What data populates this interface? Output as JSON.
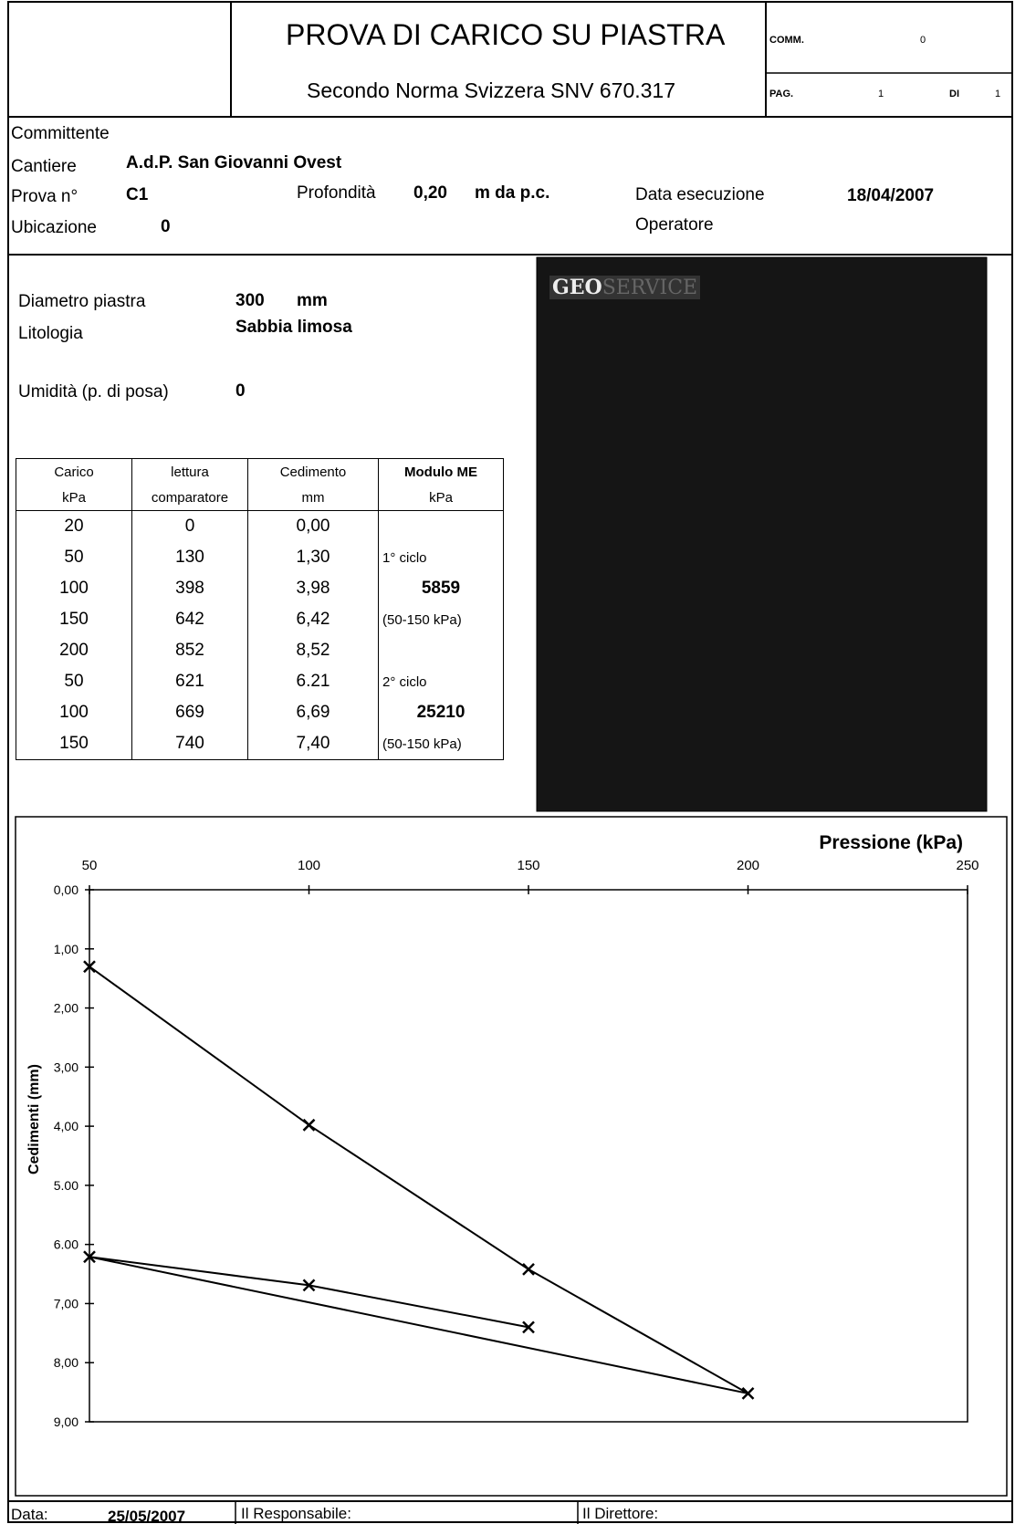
{
  "header": {
    "title": "PROVA DI CARICO SU PIASTRA",
    "subtitle": "Secondo Norma Svizzera SNV 670.317",
    "comm_label": "COMM.",
    "comm_value": "0",
    "pag_label": "PAG.",
    "pag_value": "1",
    "di_label": "DI",
    "di_value": "1"
  },
  "info": {
    "committente_label": "Committente",
    "cantiere_label": "Cantiere",
    "cantiere_value": "A.d.P. San Giovanni Ovest",
    "prova_label": "Prova n°",
    "prova_value": "C1",
    "profondita_label": "Profondità",
    "profondita_value": "0,20",
    "profondita_unit": "m da p.c.",
    "data_label": "Data esecuzione",
    "data_value": "18/04/2007",
    "ubicazione_label": "Ubicazione",
    "ubicazione_value": "0",
    "operatore_label": "Operatore"
  },
  "specs": {
    "diametro_label": "Diametro piastra",
    "diametro_value": "300",
    "diametro_unit": "mm",
    "litologia_label": "Litologia",
    "litologia_value": "Sabbia limosa",
    "umidita_label": "Umidità (p. di posa)",
    "umidita_value": "0"
  },
  "table": {
    "headers": [
      [
        "Carico",
        "kPa"
      ],
      [
        "lettura",
        "comparatore"
      ],
      [
        "Cedimento",
        "mm"
      ],
      [
        "Modulo ME",
        "kPa"
      ]
    ],
    "rows": [
      [
        "20",
        "0",
        "0,00",
        null
      ],
      [
        "50",
        "130",
        "1,30",
        "1° ciclo"
      ],
      [
        "100",
        "398",
        "3,98",
        "5859"
      ],
      [
        "150",
        "642",
        "6,42",
        "(50-150 kPa)"
      ],
      [
        "200",
        "852",
        "8,52",
        null
      ],
      [
        "50",
        "621",
        "6.21",
        "2° ciclo"
      ],
      [
        "100",
        "669",
        "6,69",
        "25210"
      ],
      [
        "150",
        "740",
        "7,40",
        "(50-150 kPa)"
      ]
    ]
  },
  "photo": {
    "logo_a": "GEO",
    "logo_b": "SERVICE"
  },
  "chart_data": {
    "type": "line",
    "x_label": "Pressione (kPa)",
    "y_label": "Cedimenti (mm)",
    "x": [
      50,
      100,
      150,
      200,
      50,
      100,
      150
    ],
    "values": [
      1.3,
      3.98,
      6.42,
      8.52,
      6.21,
      6.69,
      7.4
    ],
    "color": "#000000",
    "xlim": [
      50,
      250
    ],
    "ylim": [
      0,
      9
    ],
    "y_inverted": true,
    "x_axis_position": "top",
    "xticks": [
      50,
      100,
      150,
      200,
      250
    ],
    "yticks": [
      {
        "value": 0,
        "label": "0,00"
      },
      {
        "value": 1,
        "label": "1,00"
      },
      {
        "value": 2,
        "label": "2,00"
      },
      {
        "value": 3,
        "label": "3,00"
      },
      {
        "value": 4,
        "label": "4,00"
      },
      {
        "value": 5,
        "label": "5.00"
      },
      {
        "value": 6,
        "label": "6.00"
      },
      {
        "value": 7,
        "label": "7,00"
      },
      {
        "value": 8,
        "label": "8,00"
      },
      {
        "value": 9,
        "label": "9,00"
      }
    ]
  },
  "footer": {
    "data_label": "Data:",
    "data_value": "25/05/2007",
    "responsabile_label": "Il Responsabile:",
    "direttore_label": "Il Direttore:"
  }
}
